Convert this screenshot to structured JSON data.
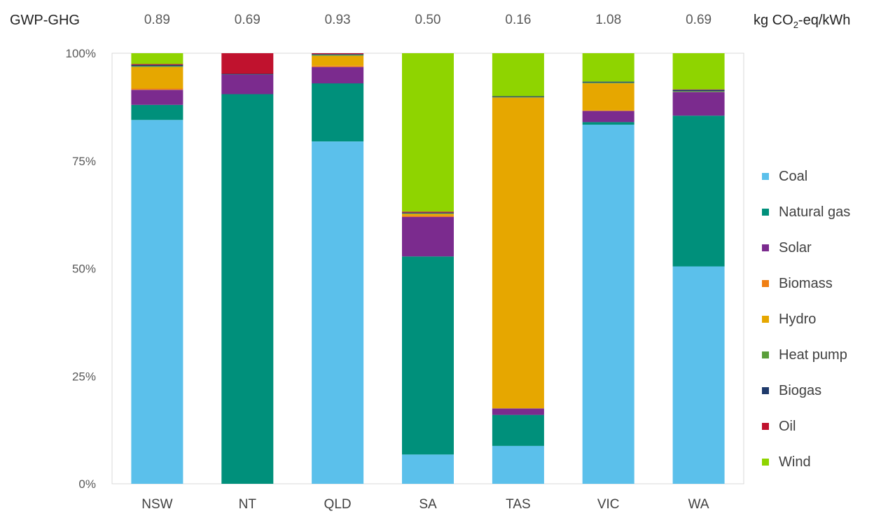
{
  "header": {
    "left_label": "GWP-GHG",
    "unit_prefix": "kg CO",
    "unit_sub": "2",
    "unit_suffix": "-eq/kWh"
  },
  "chart_data": {
    "type": "bar",
    "stacked": true,
    "normalized": true,
    "categories": [
      "NSW",
      "NT",
      "QLD",
      "SA",
      "TAS",
      "VIC",
      "WA"
    ],
    "gwp_ghg": [
      "0.89",
      "0.69",
      "0.93",
      "0.50",
      "0.16",
      "1.08",
      "0.69"
    ],
    "y_ticks": [
      "0%",
      "25%",
      "50%",
      "75%",
      "100%"
    ],
    "ylim": [
      0,
      100
    ],
    "grid": false,
    "legend_position": "right",
    "series": [
      {
        "name": "Coal",
        "color": "#5BC0EB",
        "values": [
          84.5,
          0,
          79.5,
          6.8,
          8.8,
          83.4,
          50.5
        ]
      },
      {
        "name": "Natural gas",
        "color": "#00907B",
        "values": [
          3.5,
          90.5,
          13.5,
          46.0,
          7.2,
          0.6,
          35.0
        ]
      },
      {
        "name": "Solar",
        "color": "#7B2B8E",
        "values": [
          3.5,
          4.5,
          3.8,
          9.2,
          1.5,
          2.6,
          5.5
        ]
      },
      {
        "name": "Biomass",
        "color": "#F07F13",
        "values": [
          0.3,
          0,
          0.3,
          0.3,
          0,
          0.1,
          0
        ]
      },
      {
        "name": "Hydro",
        "color": "#E6A700",
        "values": [
          5.0,
          0,
          2.3,
          0.4,
          72.2,
          6.3,
          0
        ]
      },
      {
        "name": "Heat pump",
        "color": "#5A9E3A",
        "values": [
          0.2,
          0,
          0.2,
          0.1,
          0.1,
          0.2,
          0.2
        ]
      },
      {
        "name": "Biogas",
        "color": "#1F3A6B",
        "values": [
          0.3,
          0.2,
          0.2,
          0.2,
          0.2,
          0.2,
          0.3
        ]
      },
      {
        "name": "Oil",
        "color": "#C0122E",
        "values": [
          0.2,
          4.8,
          0.2,
          0.2,
          0,
          0,
          0.1
        ]
      },
      {
        "name": "Wind",
        "color": "#8FD400",
        "values": [
          2.5,
          0,
          0.0,
          36.8,
          10.0,
          6.6,
          8.4
        ]
      }
    ]
  }
}
